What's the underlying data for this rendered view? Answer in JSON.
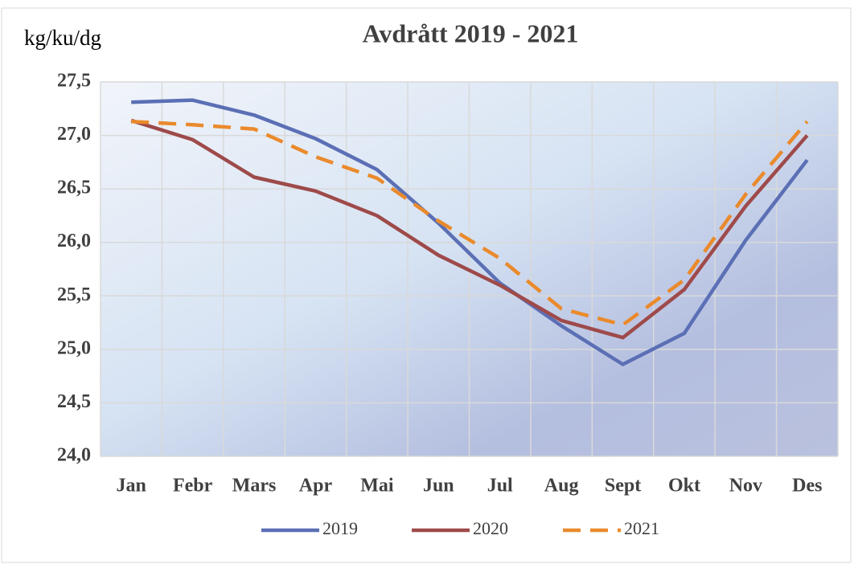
{
  "chart_data": {
    "type": "line",
    "title": "Avdrått 2019 - 2021",
    "y_label": "kg/ku/dg",
    "categories": [
      "Jan",
      "Febr",
      "Mars",
      "Apr",
      "Mai",
      "Jun",
      "Jul",
      "Aug",
      "Sept",
      "Okt",
      "Nov",
      "Des"
    ],
    "series": [
      {
        "name": "2019",
        "color": "#5b6fb5",
        "dash": false,
        "values": [
          27.31,
          27.33,
          27.19,
          26.97,
          26.68,
          26.18,
          25.62,
          25.22,
          24.86,
          25.15,
          26.02,
          26.77
        ]
      },
      {
        "name": "2020",
        "color": "#9e4a4a",
        "dash": false,
        "values": [
          27.14,
          26.96,
          26.61,
          26.48,
          26.25,
          25.88,
          25.6,
          25.27,
          25.11,
          25.56,
          26.34,
          27.0
        ]
      },
      {
        "name": "2021",
        "color": "#ea8a2c",
        "dash": true,
        "values": [
          27.13,
          27.1,
          27.06,
          26.8,
          26.6,
          26.2,
          25.85,
          25.38,
          25.23,
          25.65,
          26.45,
          27.13
        ]
      }
    ],
    "ylim": [
      24.0,
      27.5
    ],
    "yticks": [
      {
        "value": 24.0,
        "label": "24,0"
      },
      {
        "value": 24.5,
        "label": "24,5"
      },
      {
        "value": 25.0,
        "label": "25,0"
      },
      {
        "value": 25.5,
        "label": "25,5"
      },
      {
        "value": 26.0,
        "label": "26,0"
      },
      {
        "value": 26.5,
        "label": "26,5"
      },
      {
        "value": 27.0,
        "label": "27,0"
      },
      {
        "value": 27.5,
        "label": "27,5"
      }
    ],
    "grid": true,
    "legend": "bottom"
  }
}
